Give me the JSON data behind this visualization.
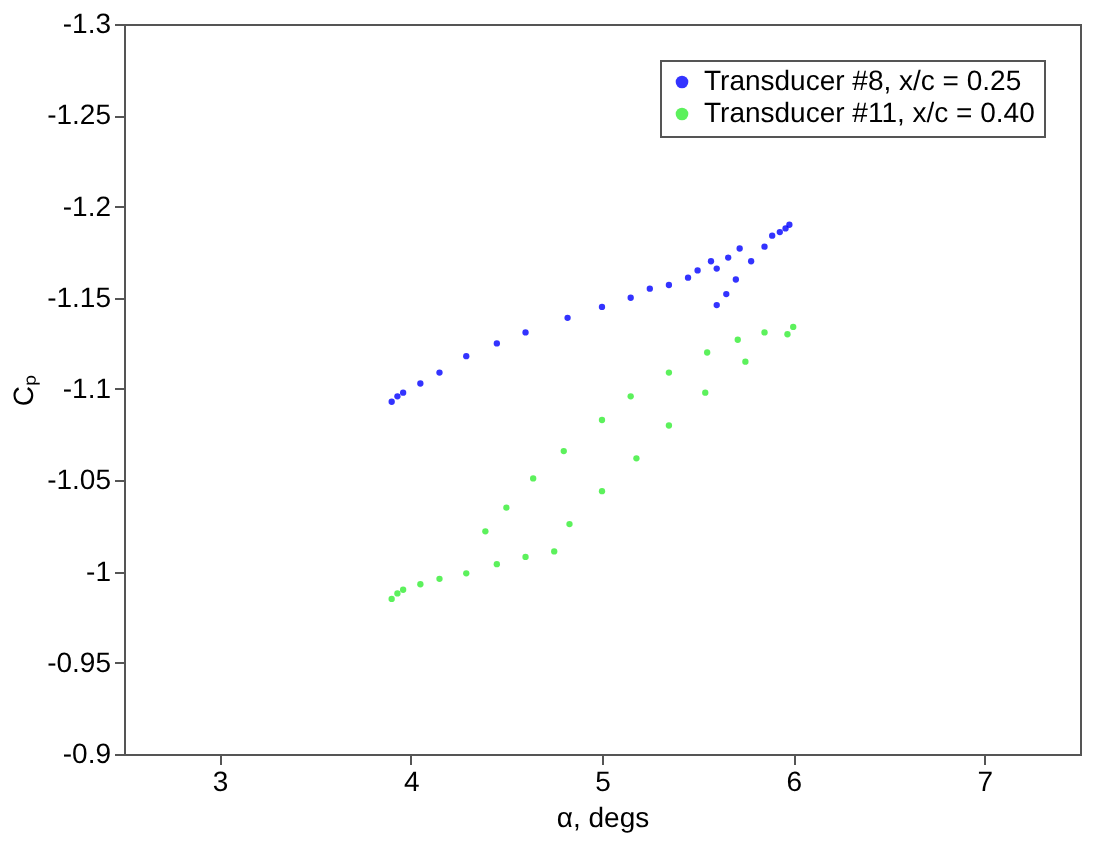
{
  "chart_data": {
    "type": "scatter",
    "xlabel": "α, degs",
    "ylabel": "Cₚ",
    "xlim": [
      2.5,
      7.5
    ],
    "xticks": [
      3,
      4,
      5,
      6,
      7
    ],
    "ylim": [
      -0.9,
      -1.3
    ],
    "yticks": [
      -1.3,
      -1.25,
      -1.2,
      -1.15,
      -1.1,
      -1.05,
      -1,
      -0.95,
      -0.9
    ],
    "grid": false,
    "legend": "top right",
    "marker": "circle",
    "series": [
      {
        "name": "Transducer #8, x/c = 0.25",
        "color": "#0000ff",
        "x": [
          3.9,
          3.93,
          3.96,
          4.05,
          4.15,
          4.29,
          4.45,
          4.6,
          4.82,
          5.0,
          5.15,
          5.25,
          5.35,
          5.45,
          5.5,
          5.57,
          5.6,
          5.66,
          5.72,
          5.6,
          5.65,
          5.7,
          5.78,
          5.85,
          5.89,
          5.93,
          5.96,
          5.98
        ],
        "values": [
          -1.093,
          -1.096,
          -1.098,
          -1.103,
          -1.109,
          -1.118,
          -1.125,
          -1.131,
          -1.139,
          -1.145,
          -1.15,
          -1.155,
          -1.157,
          -1.161,
          -1.165,
          -1.17,
          -1.166,
          -1.172,
          -1.177,
          -1.146,
          -1.152,
          -1.16,
          -1.17,
          -1.178,
          -1.184,
          -1.186,
          -1.188,
          -1.19
        ]
      },
      {
        "name": "Transducer #11, x/c = 0.40",
        "color": "#33ee33",
        "x": [
          3.9,
          3.93,
          3.96,
          4.05,
          4.15,
          4.29,
          4.45,
          4.6,
          4.75,
          4.83,
          5.0,
          5.18,
          5.35,
          5.54,
          5.75,
          5.97,
          4.39,
          4.5,
          4.64,
          4.8,
          5.0,
          5.15,
          5.35,
          5.55,
          5.71,
          5.85,
          6.0
        ],
        "values": [
          -0.985,
          -0.988,
          -0.99,
          -0.993,
          -0.996,
          -0.999,
          -1.004,
          -1.008,
          -1.011,
          -1.026,
          -1.044,
          -1.062,
          -1.08,
          -1.098,
          -1.115,
          -1.13,
          -1.022,
          -1.035,
          -1.051,
          -1.066,
          -1.083,
          -1.096,
          -1.109,
          -1.12,
          -1.127,
          -1.131,
          -1.134
        ]
      }
    ]
  }
}
